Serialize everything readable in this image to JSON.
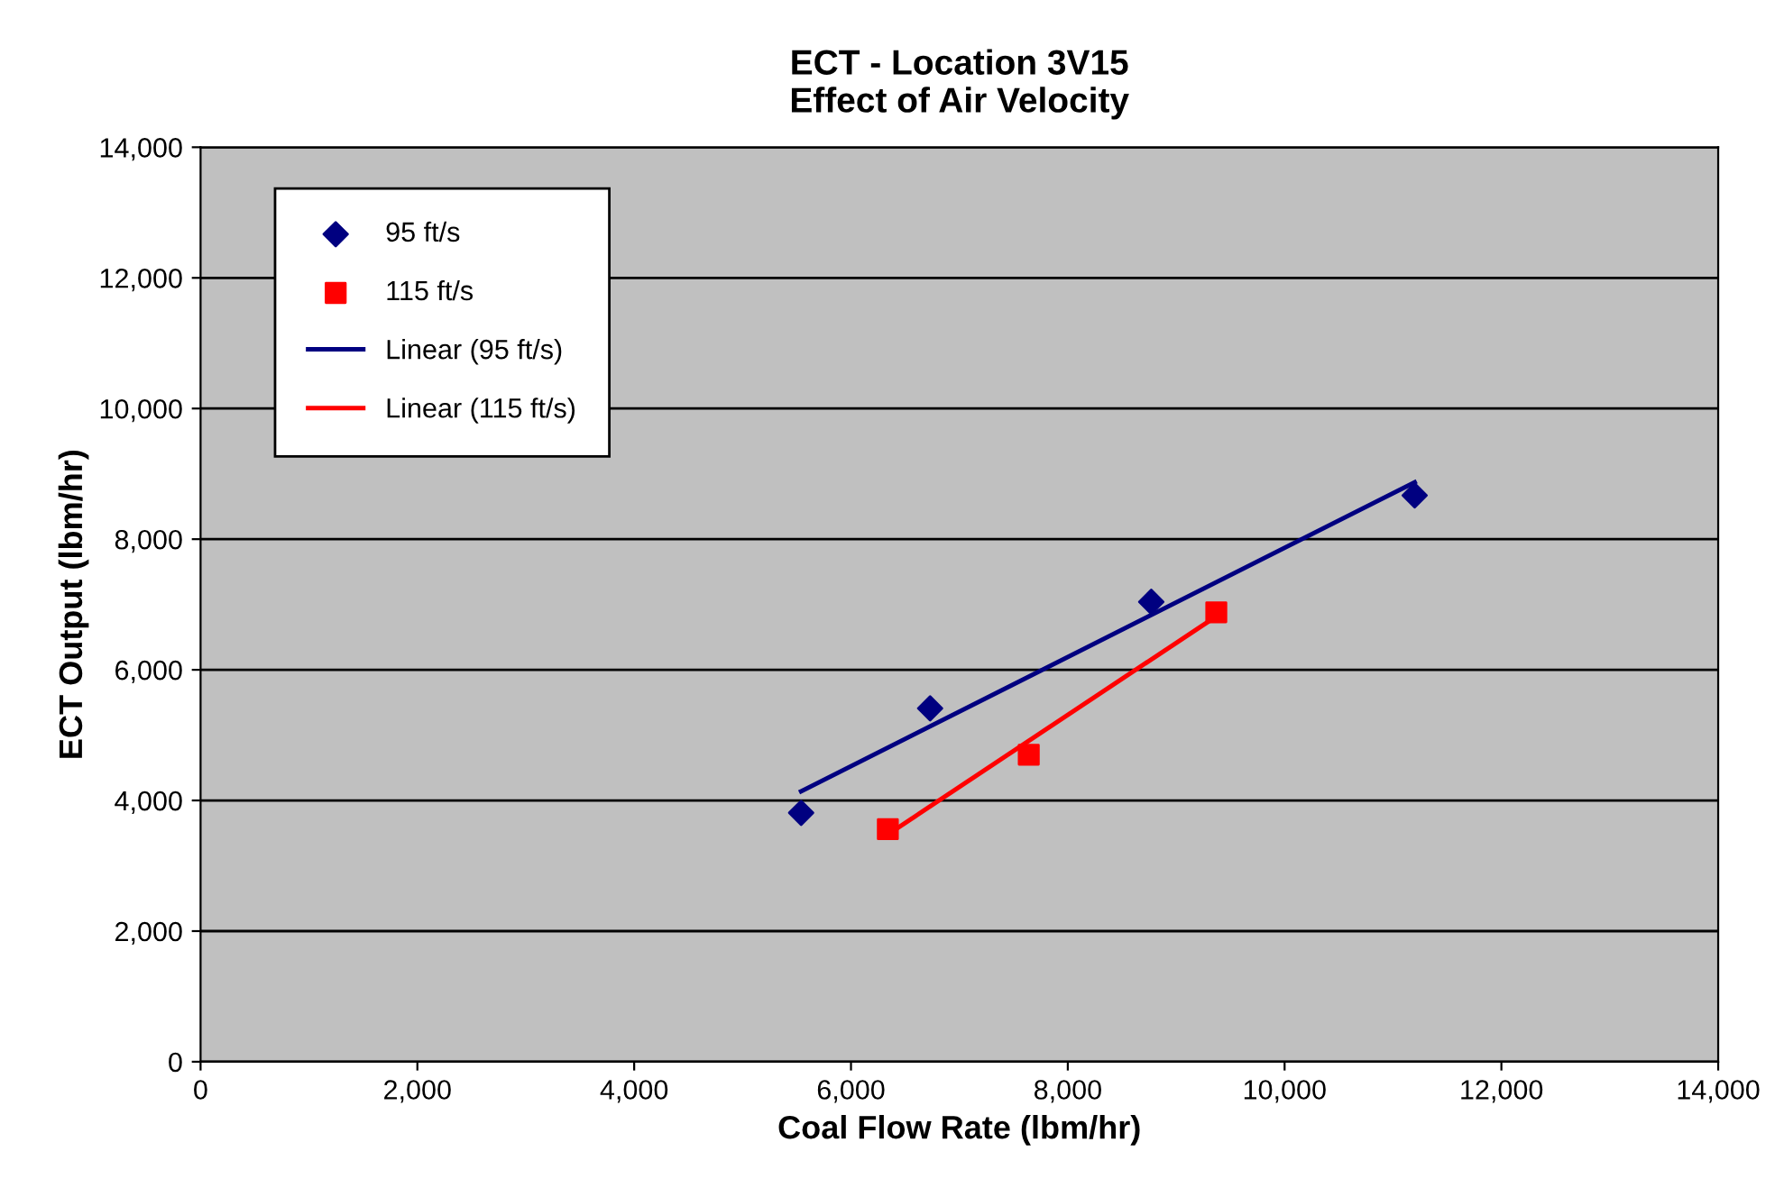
{
  "chart_data": {
    "type": "scatter",
    "title": "ECT - Location 3V15\nEffect of Air Velocity",
    "xlabel": "Coal Flow Rate (lbm/hr)",
    "ylabel": "ECT Output (lbm/hr)",
    "series": [
      {
        "name": "95 ft/s",
        "color": "#000080",
        "marker": "diamond",
        "x": [
          5540,
          6730,
          8770,
          11200
        ],
        "values": [
          3810,
          5410,
          7040,
          8670
        ]
      },
      {
        "name": "115 ft/s",
        "color": "#ff0000",
        "marker": "square",
        "x": [
          6340,
          7640,
          9370
        ],
        "values": [
          3560,
          4700,
          6880
        ]
      },
      {
        "name": "Linear (95 ft/s)",
        "type": "line",
        "color": "#000080",
        "marker": "none",
        "x": [
          5540,
          11200
        ],
        "values": [
          4140,
          8870
        ]
      },
      {
        "name": "Linear (115 ft/s)",
        "type": "line",
        "color": "#ff0000",
        "marker": "none",
        "x": [
          6340,
          9370
        ],
        "values": [
          3480,
          6820
        ]
      }
    ],
    "xlim": [
      0,
      14000
    ],
    "xticks": [
      {
        "value": 0,
        "label": "0"
      },
      {
        "value": 2000,
        "label": "2,000"
      },
      {
        "value": 4000,
        "label": "4,000"
      },
      {
        "value": 6000,
        "label": "6,000"
      },
      {
        "value": 8000,
        "label": "8,000"
      },
      {
        "value": 10000,
        "label": "10,000"
      },
      {
        "value": 12000,
        "label": "12,000"
      },
      {
        "value": 14000,
        "label": "14,000"
      }
    ],
    "ylim": [
      0,
      14000
    ],
    "yticks": [
      {
        "value": 0,
        "label": "0"
      },
      {
        "value": 2000,
        "label": "2,000"
      },
      {
        "value": 4000,
        "label": "4,000"
      },
      {
        "value": 6000,
        "label": "6,000"
      },
      {
        "value": 8000,
        "label": "8,000"
      },
      {
        "value": 10000,
        "label": "10,000"
      },
      {
        "value": 12000,
        "label": "12,000"
      },
      {
        "value": 14000,
        "label": "14,000"
      }
    ],
    "grid": "y",
    "legend": "top left"
  }
}
